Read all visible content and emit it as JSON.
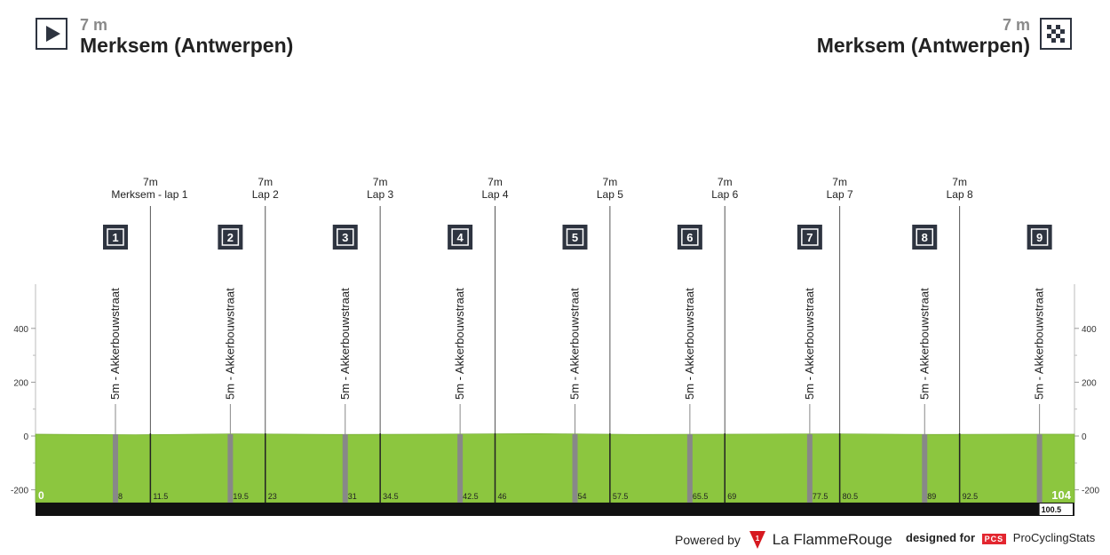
{
  "header": {
    "start_altitude": "7 m",
    "start_name": "Merksem (Antwerpen)",
    "finish_altitude": "7 m",
    "finish_name": "Merksem (Antwerpen)"
  },
  "footer": {
    "powered_by": "Powered by",
    "lfr_brand": "La FlammeRouge",
    "designed_for": "designed for",
    "pcs_badge": "PCS",
    "pcs_name": "ProCyclingStats"
  },
  "colors": {
    "profile_fill": "#8cc63f",
    "base_bar": "#111111",
    "climb_marker": "#888888",
    "icon_dark": "#2e3440"
  },
  "chart_data": {
    "type": "area",
    "title": "",
    "xlabel": "",
    "ylabel": "",
    "xlim": [
      0,
      104
    ],
    "ylim": [
      -300,
      550
    ],
    "yticks": [
      -200,
      0,
      200,
      400
    ],
    "total_distance": "104",
    "start_distance": "0",
    "distance_to_finish_badge": "100.5",
    "profile": {
      "x": [
        0,
        10,
        20,
        30,
        40,
        50,
        60,
        70,
        80,
        90,
        100,
        104
      ],
      "y": [
        7,
        5,
        8,
        6,
        7,
        9,
        6,
        7,
        8,
        6,
        7,
        7
      ]
    },
    "climbs": [
      {
        "num": "1",
        "km": 8,
        "km_label": "8",
        "label": "5m - Akkerbouwstraat"
      },
      {
        "num": "2",
        "km": 19.5,
        "km_label": "19.5",
        "label": "5m - Akkerbouwstraat"
      },
      {
        "num": "3",
        "km": 31,
        "km_label": "31",
        "label": "5m - Akkerbouwstraat"
      },
      {
        "num": "4",
        "km": 42.5,
        "km_label": "42.5",
        "label": "5m - Akkerbouwstraat"
      },
      {
        "num": "5",
        "km": 54,
        "km_label": "54",
        "label": "5m - Akkerbouwstraat"
      },
      {
        "num": "6",
        "km": 65.5,
        "km_label": "65.5",
        "label": "5m - Akkerbouwstraat"
      },
      {
        "num": "7",
        "km": 77.5,
        "km_label": "77.5",
        "label": "5m - Akkerbouwstraat"
      },
      {
        "num": "8",
        "km": 89,
        "km_label": "89",
        "label": "5m - Akkerbouwstraat"
      },
      {
        "num": "9",
        "km": 100.5,
        "km_label": "",
        "label": "5m - Akkerbouwstraat"
      }
    ],
    "laps": [
      {
        "km": 11.5,
        "km_label": "11.5",
        "alt": "7m",
        "label": "Merksem - lap 1"
      },
      {
        "km": 23,
        "km_label": "23",
        "alt": "7m",
        "label": "Lap 2"
      },
      {
        "km": 34.5,
        "km_label": "34.5",
        "alt": "7m",
        "label": "Lap 3"
      },
      {
        "km": 46,
        "km_label": "46",
        "alt": "7m",
        "label": "Lap 4"
      },
      {
        "km": 57.5,
        "km_label": "57.5",
        "alt": "7m",
        "label": "Lap 5"
      },
      {
        "km": 69,
        "km_label": "69",
        "alt": "7m",
        "label": "Lap 6"
      },
      {
        "km": 80.5,
        "km_label": "80.5",
        "alt": "7m",
        "label": "Lap 7"
      },
      {
        "km": 92.5,
        "km_label": "92.5",
        "alt": "7m",
        "label": "Lap 8"
      }
    ]
  }
}
